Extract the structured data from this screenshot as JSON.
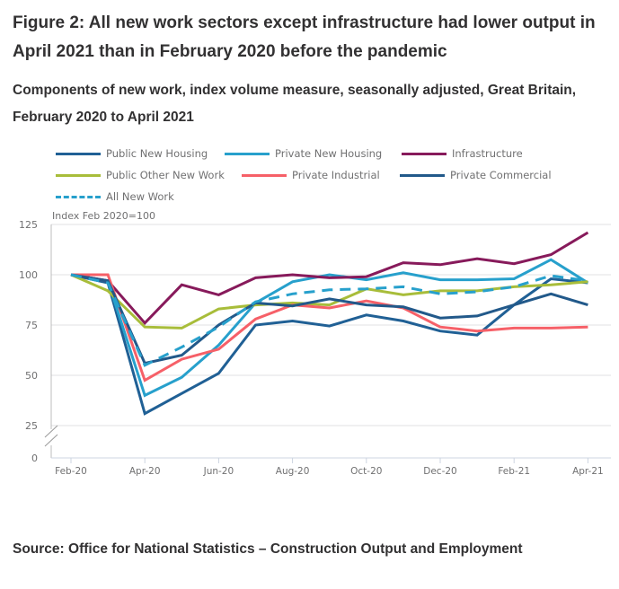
{
  "figure": {
    "title": "Figure 2: All new work sectors except infrastructure had lower output in April 2021 than in February 2020 before the pandemic",
    "subtitle": "Components of new work, index volume measure, seasonally adjusted, Great Britain, February 2020 to April 2021",
    "source": "Source: Office for National Statistics – Construction Output and Employment"
  },
  "chart_data": {
    "type": "line",
    "title": "Figure 2: All new work sectors except infrastructure had lower output in April 2021 than in February 2020 before the pandemic",
    "subtitle": "Components of new work, index volume measure, seasonally adjusted, Great Britain, February 2020 to April 2021",
    "ylabel": "Index Feb 2020=100",
    "xlabel": "",
    "ylim": [
      0,
      125
    ],
    "y_axis_break": true,
    "yticks": [
      0,
      25,
      50,
      75,
      100,
      125
    ],
    "grid": true,
    "legend_position": "top",
    "x": [
      "Feb-20",
      "Mar-20",
      "Apr-20",
      "May-20",
      "Jun-20",
      "Jul-20",
      "Aug-20",
      "Sep-20",
      "Oct-20",
      "Nov-20",
      "Dec-20",
      "Jan-21",
      "Feb-21",
      "Mar-21",
      "Apr-21"
    ],
    "xtick_labels": [
      "Feb-20",
      "Apr-20",
      "Jun-20",
      "Aug-20",
      "Oct-20",
      "Dec-20",
      "Feb-21",
      "Apr-21"
    ],
    "series": [
      {
        "name": "Public New Housing",
        "color": "#206095",
        "dashed": false,
        "values": [
          100,
          96,
          31,
          41,
          51,
          75,
          77,
          74.5,
          80,
          77,
          72,
          70,
          85,
          98,
          96
        ]
      },
      {
        "name": "Private New Housing",
        "color": "#27a0cc",
        "dashed": false,
        "values": [
          100,
          97,
          40,
          49,
          65,
          86,
          96.5,
          100,
          97.5,
          101,
          97.5,
          97.5,
          98,
          107.5,
          96
        ]
      },
      {
        "name": "Infrastructure",
        "color": "#871a5b",
        "dashed": false,
        "values": [
          100,
          97,
          76,
          95,
          90,
          98.5,
          100,
          98.5,
          99,
          106,
          105,
          108,
          105.5,
          110,
          121
        ]
      },
      {
        "name": "Public Other New Work",
        "color": "#a8bd3a",
        "dashed": false,
        "values": [
          100,
          92,
          74,
          73.5,
          83,
          85,
          86,
          85,
          93,
          90,
          92,
          92,
          94,
          95,
          96.5
        ]
      },
      {
        "name": "Private Industrial",
        "color": "#f66068",
        "dashed": false,
        "values": [
          100,
          100,
          47.5,
          58,
          63,
          78,
          85,
          83.5,
          87,
          83.5,
          74,
          72,
          73.5,
          73.5,
          74
        ]
      },
      {
        "name": "Private Commercial",
        "color": "#22598a",
        "dashed": false,
        "values": [
          100,
          97,
          56,
          60,
          75,
          86,
          84.5,
          88,
          85,
          84,
          78.5,
          79.5,
          85,
          90.5,
          85
        ]
      },
      {
        "name": "All New Work",
        "color": "#27a0cc",
        "dashed": true,
        "values": [
          100,
          96,
          55,
          64,
          74,
          86.5,
          90.5,
          92.5,
          93,
          94,
          90.5,
          91.5,
          94,
          99.5,
          97
        ]
      }
    ]
  }
}
